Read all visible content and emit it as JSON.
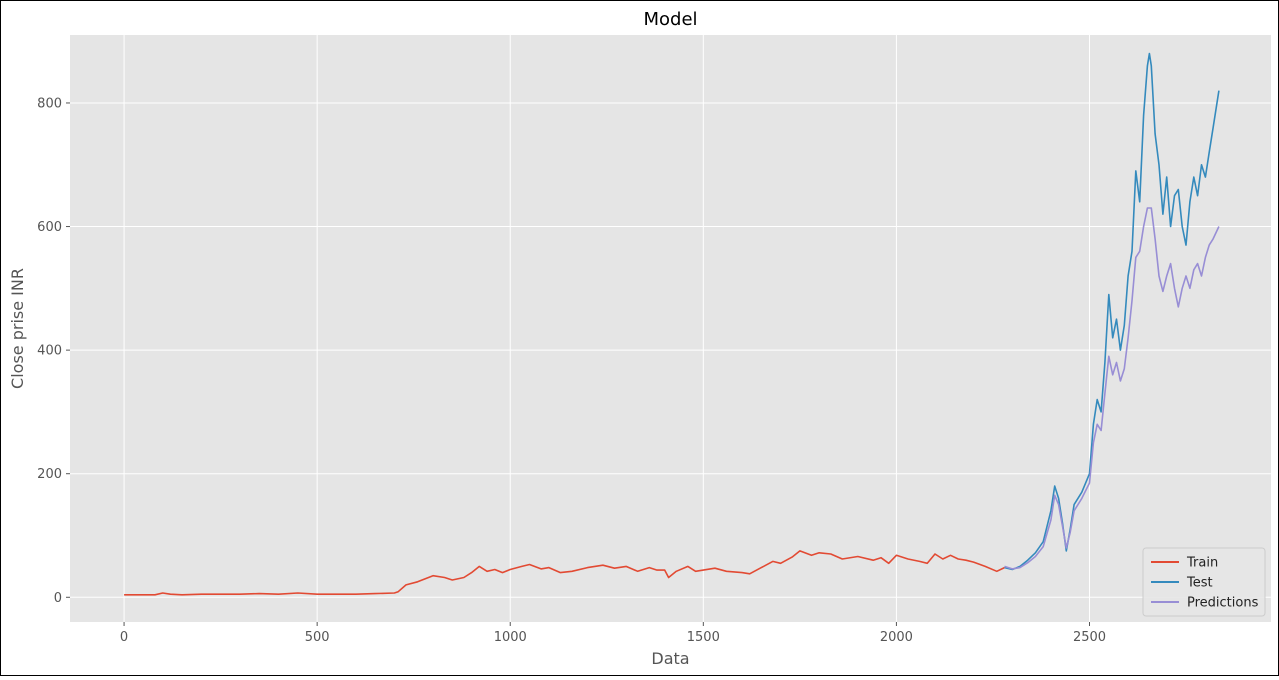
{
  "chart_data": {
    "type": "line",
    "title": "Model",
    "xlabel": "Data",
    "ylabel": "Close prise INR",
    "xlim": [
      -140,
      2970
    ],
    "ylim": [
      -40,
      910
    ],
    "xticks": [
      0,
      500,
      1000,
      1500,
      2000,
      2500
    ],
    "yticks": [
      0,
      200,
      400,
      600,
      800
    ],
    "grid": true,
    "legend_position": "lower-right",
    "series": [
      {
        "name": "Train",
        "color": "#e24a33",
        "x": [
          0,
          50,
          80,
          100,
          120,
          150,
          200,
          250,
          300,
          350,
          400,
          450,
          500,
          550,
          600,
          650,
          700,
          710,
          730,
          760,
          800,
          830,
          850,
          880,
          900,
          920,
          940,
          960,
          980,
          1000,
          1030,
          1050,
          1080,
          1100,
          1130,
          1160,
          1200,
          1240,
          1270,
          1300,
          1330,
          1360,
          1380,
          1400,
          1410,
          1430,
          1460,
          1480,
          1500,
          1530,
          1560,
          1600,
          1620,
          1650,
          1680,
          1700,
          1730,
          1750,
          1780,
          1800,
          1830,
          1860,
          1900,
          1940,
          1960,
          1980,
          2000,
          2030,
          2060,
          2080,
          2100,
          2120,
          2140,
          2160,
          2180,
          2200,
          2230,
          2260,
          2280
        ],
        "y": [
          4,
          4,
          4,
          7,
          5,
          4,
          5,
          5,
          5,
          6,
          5,
          7,
          5,
          5,
          5,
          6,
          7,
          9,
          20,
          25,
          35,
          32,
          28,
          32,
          40,
          50,
          42,
          45,
          40,
          45,
          50,
          53,
          46,
          48,
          40,
          42,
          48,
          52,
          47,
          50,
          42,
          48,
          44,
          44,
          32,
          42,
          50,
          42,
          44,
          47,
          42,
          40,
          38,
          48,
          58,
          55,
          65,
          75,
          68,
          72,
          70,
          62,
          66,
          60,
          64,
          55,
          68,
          62,
          58,
          55,
          70,
          62,
          68,
          62,
          60,
          57,
          50,
          42,
          48
        ]
      },
      {
        "name": "Test",
        "color": "#348abd",
        "x": [
          2280,
          2300,
          2320,
          2340,
          2360,
          2380,
          2400,
          2410,
          2420,
          2430,
          2440,
          2450,
          2460,
          2480,
          2500,
          2510,
          2520,
          2530,
          2540,
          2550,
          2560,
          2570,
          2580,
          2590,
          2600,
          2610,
          2620,
          2630,
          2640,
          2650,
          2655,
          2660,
          2670,
          2680,
          2690,
          2700,
          2710,
          2720,
          2730,
          2740,
          2750,
          2760,
          2770,
          2780,
          2790,
          2800,
          2810,
          2820,
          2835
        ],
        "y": [
          48,
          45,
          50,
          60,
          72,
          90,
          140,
          180,
          160,
          120,
          75,
          110,
          150,
          170,
          200,
          280,
          320,
          300,
          380,
          490,
          420,
          450,
          400,
          440,
          520,
          560,
          690,
          640,
          780,
          860,
          880,
          860,
          750,
          700,
          620,
          680,
          600,
          650,
          660,
          600,
          570,
          640,
          680,
          650,
          700,
          680,
          720,
          760,
          820
        ]
      },
      {
        "name": "Predictions",
        "color": "#988ed5",
        "x": [
          2280,
          2300,
          2320,
          2340,
          2360,
          2380,
          2400,
          2410,
          2420,
          2430,
          2440,
          2450,
          2460,
          2480,
          2500,
          2510,
          2520,
          2530,
          2540,
          2550,
          2560,
          2570,
          2580,
          2590,
          2600,
          2610,
          2620,
          2630,
          2640,
          2650,
          2660,
          2670,
          2680,
          2690,
          2700,
          2710,
          2720,
          2730,
          2740,
          2750,
          2760,
          2770,
          2780,
          2790,
          2800,
          2810,
          2820,
          2835
        ],
        "y": [
          50,
          46,
          48,
          56,
          66,
          82,
          125,
          165,
          150,
          115,
          80,
          105,
          140,
          160,
          185,
          250,
          280,
          270,
          330,
          390,
          360,
          380,
          350,
          370,
          420,
          480,
          550,
          560,
          600,
          630,
          630,
          580,
          520,
          495,
          520,
          540,
          500,
          470,
          500,
          520,
          500,
          530,
          540,
          520,
          550,
          570,
          580,
          600
        ]
      }
    ]
  }
}
